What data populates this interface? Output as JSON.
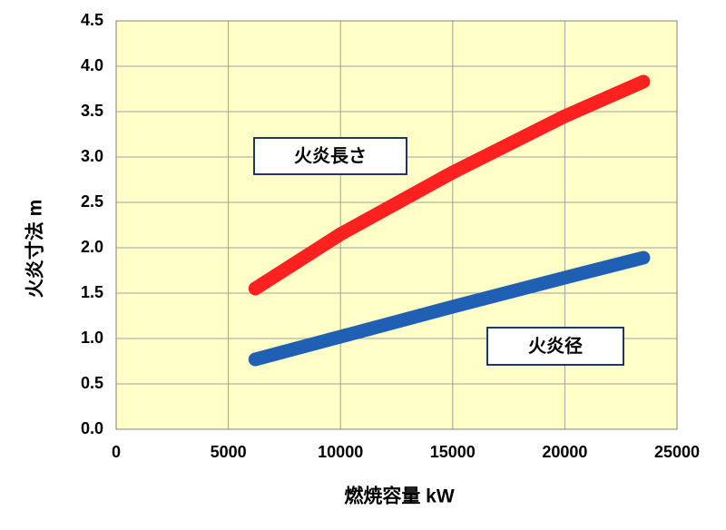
{
  "chart_data": {
    "type": "line",
    "x_label": "燃焼容量 kW",
    "y_label": "火炎寸法 m",
    "x": [
      6200,
      10000,
      15000,
      20000,
      23500
    ],
    "series": [
      {
        "name": "火炎長さ",
        "color": "#ff2020",
        "values": [
          1.55,
          2.15,
          2.83,
          3.45,
          3.83
        ]
      },
      {
        "name": "火炎径",
        "color": "#1f5fb4",
        "values": [
          0.77,
          1.02,
          1.35,
          1.67,
          1.89
        ]
      }
    ],
    "xlim": [
      0,
      25000
    ],
    "ylim": [
      0,
      4.5
    ],
    "xticks": [
      0,
      5000,
      10000,
      15000,
      20000,
      25000
    ],
    "yticks": [
      {
        "value": 0,
        "label": "0.0"
      },
      0.5,
      {
        "value": 1,
        "label": "1.0"
      },
      1.5,
      {
        "value": 2,
        "label": "2.0"
      },
      2.5,
      {
        "value": 3,
        "label": "3.0"
      },
      3.5,
      {
        "value": 4,
        "label": "4.0"
      },
      4.5
    ],
    "grid": true,
    "background": "#ffffc8"
  }
}
